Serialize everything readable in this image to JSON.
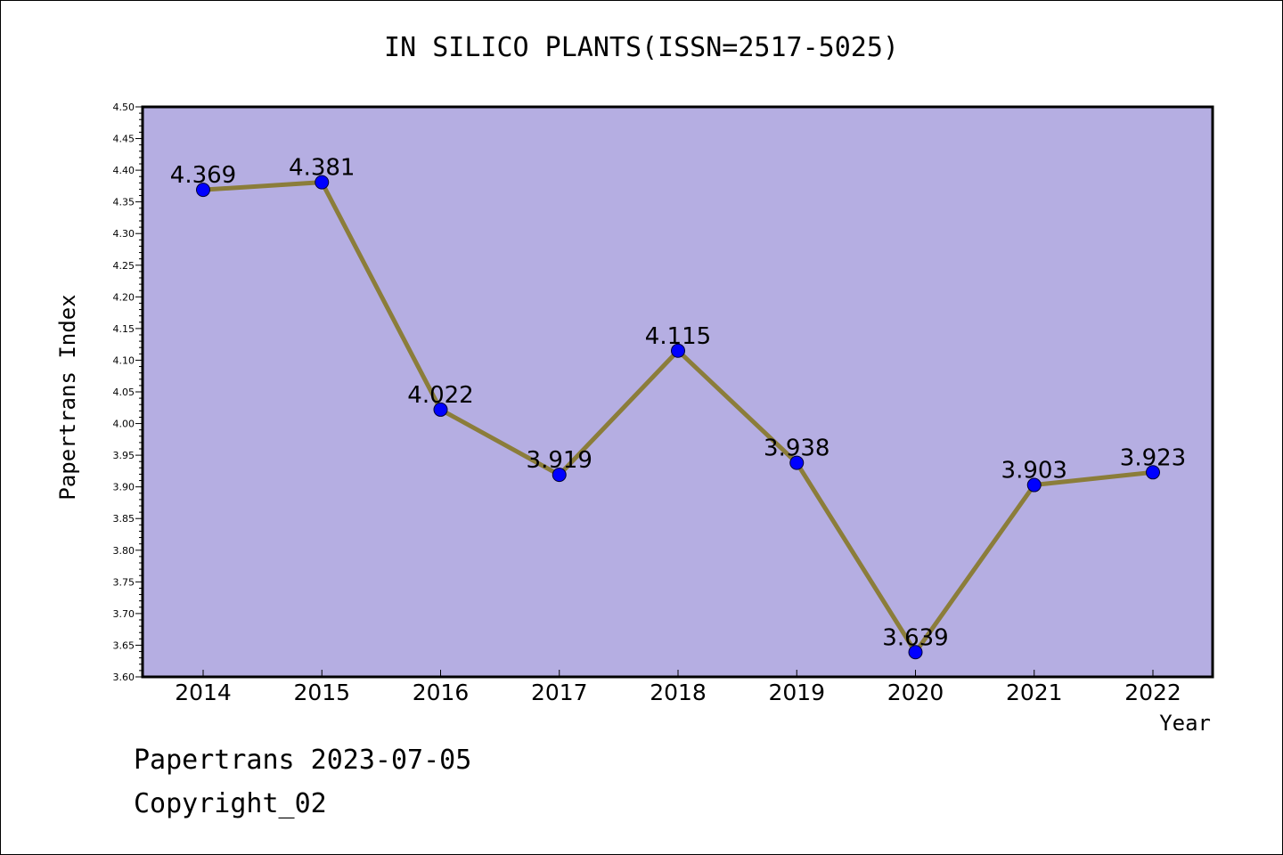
{
  "chart_data": {
    "type": "line",
    "title": "IN SILICO PLANTS(ISSN=2517-5025)",
    "xlabel": "Year",
    "ylabel": "Papertrans Index",
    "x": [
      "2014",
      "2015",
      "2016",
      "2017",
      "2018",
      "2019",
      "2020",
      "2021",
      "2022"
    ],
    "values": [
      4.369,
      4.381,
      4.022,
      3.919,
      4.115,
      3.938,
      3.639,
      3.903,
      3.923
    ],
    "data_labels": [
      "4.369",
      "4.381",
      "4.022",
      "3.919",
      "4.115",
      "3.938",
      "3.639",
      "3.903",
      "3.923"
    ],
    "ylim": [
      3.6,
      4.5
    ],
    "yticks": [
      "3.60",
      "3.65",
      "3.70",
      "3.75",
      "3.80",
      "3.85",
      "3.90",
      "3.95",
      "4.00",
      "4.05",
      "4.10",
      "4.15",
      "4.20",
      "4.25",
      "4.30",
      "4.35",
      "4.40",
      "4.45",
      "4.50"
    ],
    "grid": false,
    "colors": {
      "plot_background": "#b5aee2",
      "line": "#8b7d3a",
      "marker": "#0000ff"
    }
  },
  "footer": {
    "date_line": "Papertrans 2023-07-05",
    "copyright_line": "Copyright_02"
  }
}
